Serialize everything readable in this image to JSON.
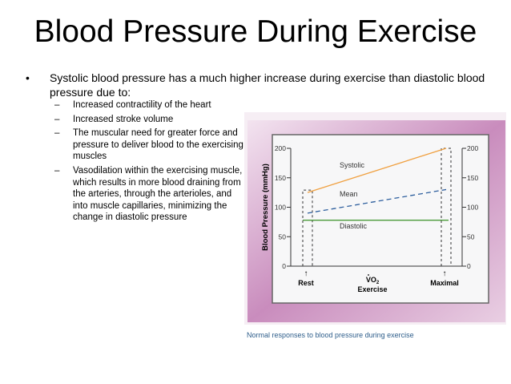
{
  "slide": {
    "title": "Blood Pressure During Exercise",
    "bullet": "Systolic blood pressure has a much higher increase during exercise than diastolic blood pressure due to:",
    "sub_items": [
      "Increased contractility of the heart",
      "Increased stroke volume",
      "The muscular need for greater force and pressure to deliver blood to the exercising muscles",
      "Vasodilation within the exercising muscle, which results in more blood draining from the arteries, through the arterioles, and into muscle capillaries, minimizing the change in diastolic pressure"
    ],
    "bullet_glyph": "•",
    "dash_glyph": "–"
  },
  "chart_data": {
    "type": "line",
    "title": "",
    "caption": "Normal responses to blood pressure during exercise",
    "ylabel": "Blood Pressure (mmHg)",
    "xlabel": "Exercise",
    "xlabel_symbol": "VO",
    "xlabel_sub": "2",
    "x_ticks": [
      "Rest",
      "Maximal"
    ],
    "arrow": "↑",
    "ylim": [
      0,
      200
    ],
    "y_ticks": [
      "0",
      "50",
      "100",
      "150",
      "200"
    ],
    "series": [
      {
        "name": "Systolic",
        "values": [
          125,
          200
        ],
        "color": "#f0a040",
        "style": "solid"
      },
      {
        "name": "Mean",
        "values": [
          90,
          130
        ],
        "color": "#2e5f9e",
        "style": "dashed"
      },
      {
        "name": "Diastolic",
        "values": [
          78,
          78
        ],
        "color": "#4a9a3a",
        "style": "solid"
      }
    ]
  }
}
